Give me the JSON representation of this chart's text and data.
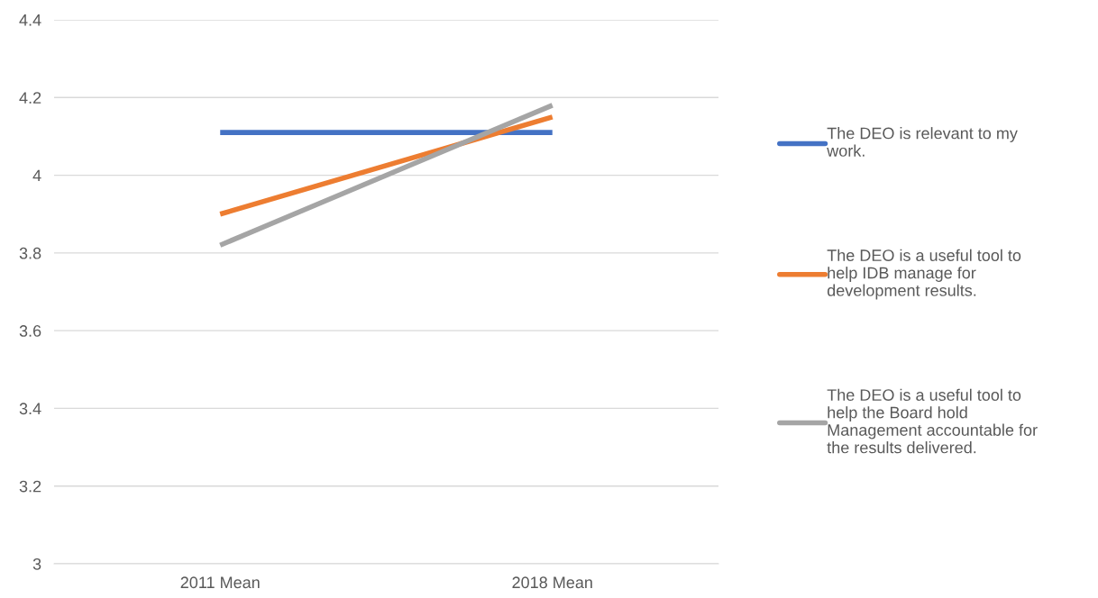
{
  "chart_data": {
    "type": "line",
    "categories": [
      "2011 Mean",
      "2018 Mean"
    ],
    "series": [
      {
        "name": "The DEO is relevant to my work.",
        "color": "#4472c4",
        "values": [
          4.11,
          4.11
        ]
      },
      {
        "name": "The DEO is a useful tool to help IDB manage for development results.",
        "color": "#ed7d31",
        "values": [
          3.9,
          4.15
        ]
      },
      {
        "name": "The DEO is a useful tool to help the Board hold Management accountable for the results delivered.",
        "color": "#a5a5a5",
        "values": [
          3.82,
          4.18
        ]
      }
    ],
    "ylim": [
      3,
      4.4
    ],
    "yticks": [
      3,
      3.2,
      3.4,
      3.6,
      3.8,
      4,
      4.2,
      4.4
    ],
    "grid": "y",
    "legend": "right",
    "marker": "none",
    "line_style": "solid"
  }
}
